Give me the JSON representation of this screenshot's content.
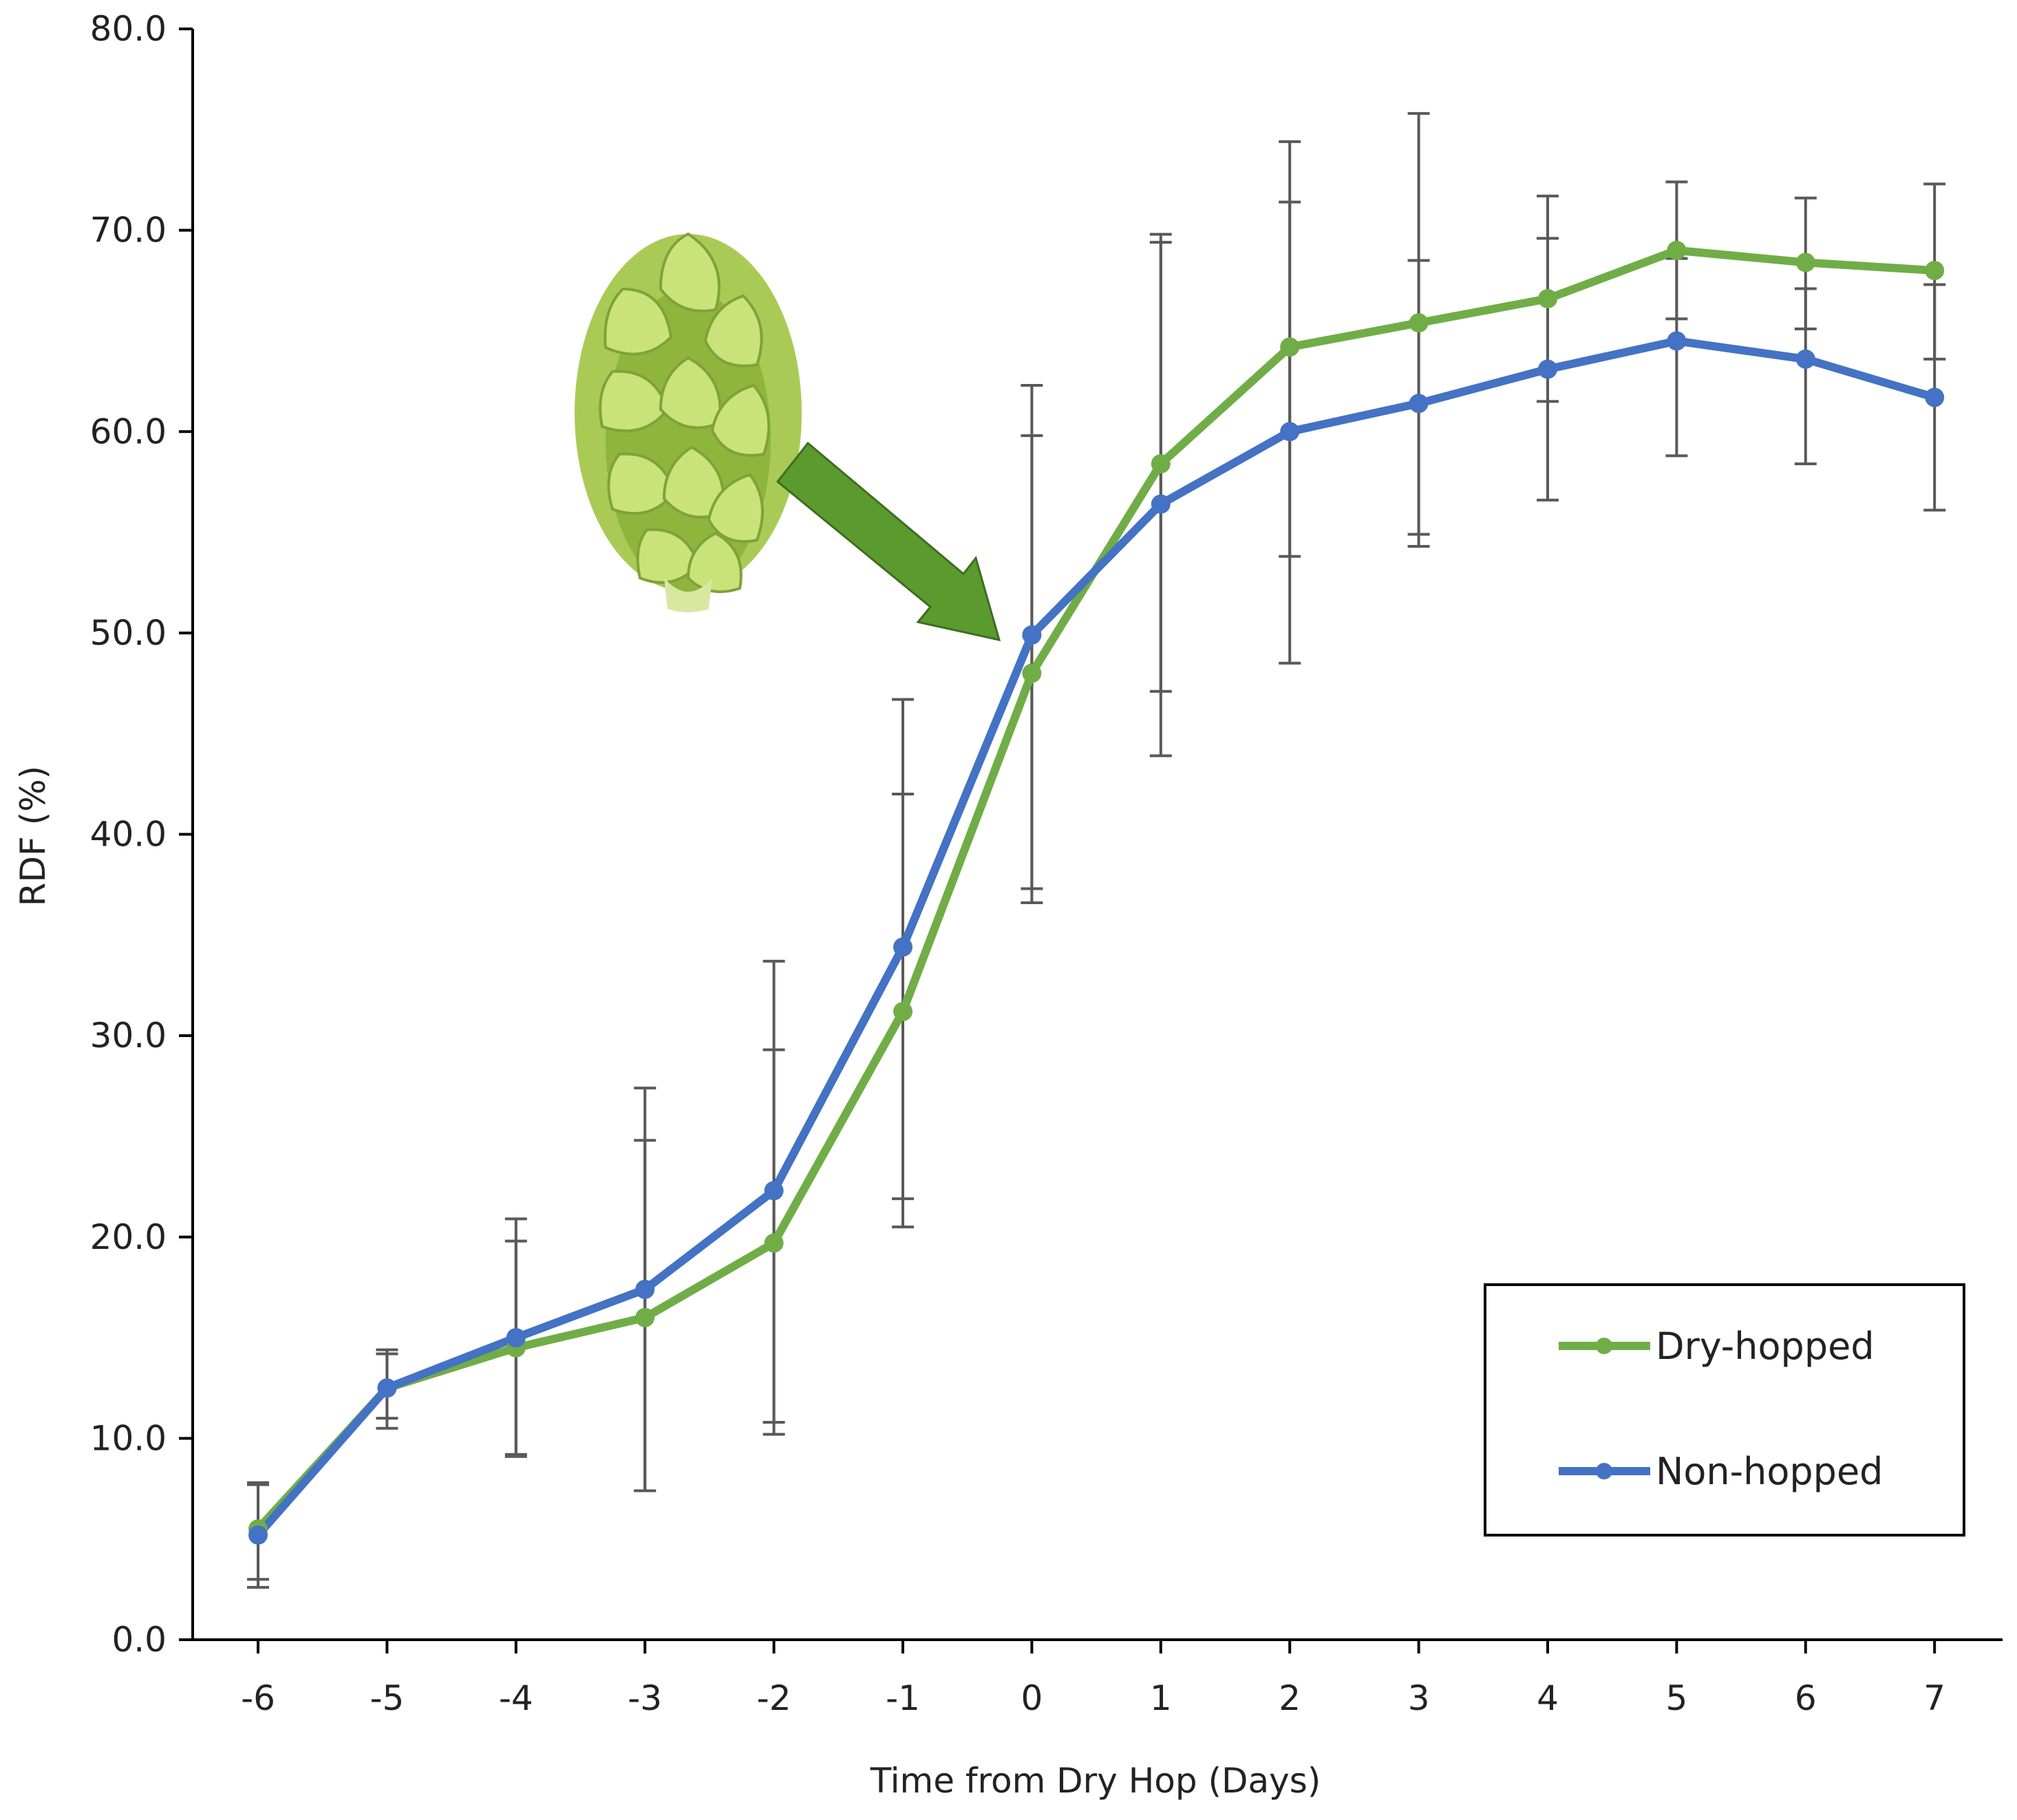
{
  "chart_data": {
    "type": "line",
    "title": "",
    "xlabel": "Time from Dry Hop (Days)",
    "ylabel": "RDF (%)",
    "x": [
      -6,
      -5,
      -4,
      -3,
      -2,
      -1,
      0,
      1,
      2,
      3,
      4,
      5,
      6,
      7
    ],
    "x_tick_labels": [
      "-6",
      "-5",
      "-4",
      "-3",
      "-2",
      "-1",
      "0",
      "1",
      "2",
      "3",
      "4",
      "5",
      "6",
      "7"
    ],
    "ylim": [
      0,
      80
    ],
    "y_ticks": [
      0,
      10,
      20,
      30,
      40,
      50,
      60,
      70,
      80
    ],
    "y_tick_labels": [
      "0.0",
      "10.0",
      "20.0",
      "30.0",
      "40.0",
      "50.0",
      "60.0",
      "70.0",
      "80.0"
    ],
    "grid": false,
    "legend_position": "bottom-right",
    "series": [
      {
        "name": "Dry-hopped",
        "color": "#70ad47",
        "values": [
          5.5,
          12.5,
          14.5,
          16.0,
          19.7,
          31.2,
          48.0,
          58.4,
          64.2,
          65.4,
          66.6,
          69.0,
          68.4,
          68.0
        ],
        "error_low": [
          3.0,
          11.0,
          9.2,
          7.4,
          10.2,
          20.5,
          36.6,
          47.1,
          53.8,
          54.9,
          61.5,
          65.6,
          65.1,
          63.6
        ],
        "error_high": [
          7.8,
          14.2,
          19.8,
          24.8,
          29.3,
          42.0,
          59.8,
          69.4,
          71.4,
          68.5,
          69.6,
          72.4,
          71.6,
          72.3
        ]
      },
      {
        "name": "Non-hopped",
        "color": "#4472c4",
        "values": [
          5.2,
          12.5,
          15.0,
          17.4,
          22.3,
          34.4,
          49.9,
          56.4,
          60.0,
          61.4,
          63.1,
          64.5,
          63.6,
          61.7
        ],
        "error_low": [
          2.6,
          10.5,
          9.1,
          7.4,
          10.8,
          21.9,
          37.3,
          43.9,
          48.5,
          54.3,
          56.6,
          58.8,
          58.4,
          56.1
        ],
        "error_high": [
          7.7,
          14.4,
          20.9,
          27.4,
          33.7,
          46.7,
          62.3,
          69.8,
          74.4,
          75.8,
          71.7,
          68.6,
          67.1,
          67.3
        ]
      }
    ],
    "annotation": "hop-cone-with-arrow pointing to day 0",
    "error_bar_color": "#595959",
    "axis_color": "#000000"
  }
}
